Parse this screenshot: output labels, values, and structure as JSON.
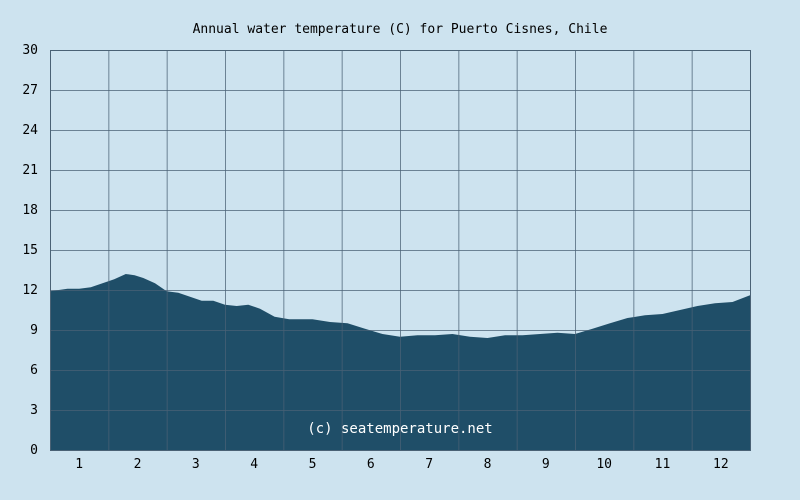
{
  "chart_data": {
    "type": "area",
    "title": "Annual water temperature (C) for Puerto Cisnes, Chile",
    "watermark": "(c) seatemperature.net",
    "xlabel": "",
    "ylabel": "",
    "x_ticks": [
      "1",
      "2",
      "3",
      "4",
      "5",
      "6",
      "7",
      "8",
      "9",
      "10",
      "11",
      "12"
    ],
    "y_ticks": [
      "0",
      "3",
      "6",
      "9",
      "12",
      "15",
      "18",
      "21",
      "24",
      "27",
      "30"
    ],
    "xlim": [
      0.5,
      12.5
    ],
    "ylim": [
      0,
      30
    ],
    "grid": true,
    "fill_color": "#1f4e68",
    "background_color": "#cde3ef",
    "grid_color": "#4a6275",
    "series": [
      {
        "x": [
          0.5,
          0.8,
          1.0,
          1.2,
          1.4,
          1.6,
          1.8,
          1.95,
          2.1,
          2.3,
          2.5,
          2.7,
          2.9,
          3.1,
          3.3,
          3.5,
          3.7,
          3.9,
          4.1,
          4.35,
          4.6,
          4.8,
          5.0,
          5.3,
          5.6,
          5.9,
          6.2,
          6.5,
          6.8,
          7.1,
          7.4,
          7.7,
          8.0,
          8.3,
          8.6,
          8.9,
          9.2,
          9.5,
          9.8,
          10.1,
          10.4,
          10.7,
          11.0,
          11.3,
          11.6,
          11.9,
          12.2,
          12.5
        ],
        "y": [
          11.9,
          12.1,
          12.1,
          12.2,
          12.5,
          12.8,
          13.2,
          13.1,
          12.9,
          12.5,
          11.9,
          11.8,
          11.5,
          11.2,
          11.2,
          10.9,
          10.8,
          10.9,
          10.6,
          10.0,
          9.8,
          9.8,
          9.8,
          9.6,
          9.5,
          9.1,
          8.7,
          8.5,
          8.6,
          8.6,
          8.7,
          8.5,
          8.4,
          8.6,
          8.6,
          8.7,
          8.8,
          8.7,
          9.1,
          9.5,
          9.9,
          10.1,
          10.2,
          10.5,
          10.8,
          11.0,
          11.1,
          11.6
        ]
      }
    ]
  }
}
